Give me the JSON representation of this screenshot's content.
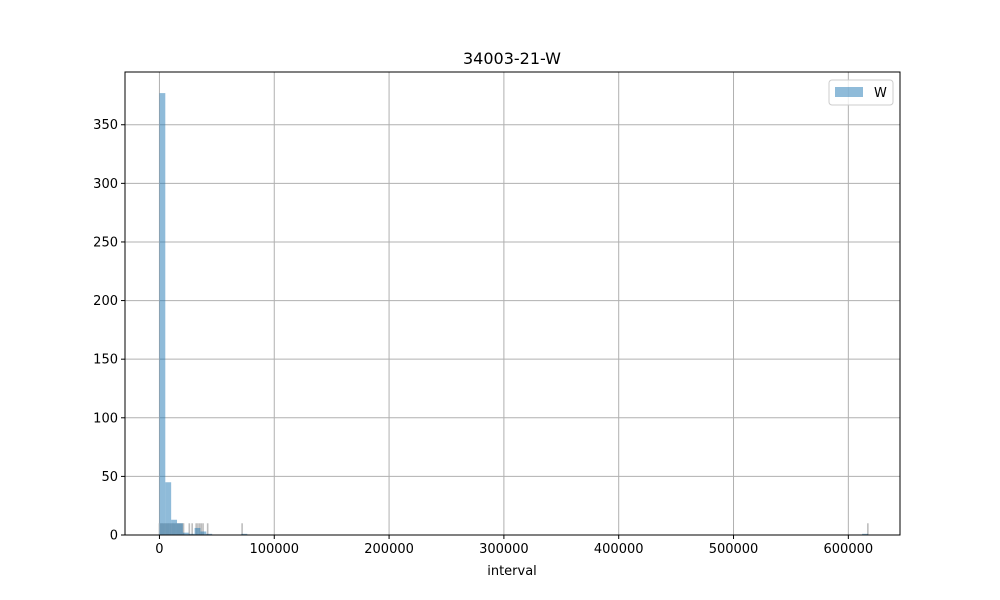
{
  "chart_data": {
    "type": "bar",
    "title": "34003-21-W",
    "xlabel": "interval",
    "ylabel": "",
    "xlim": [
      -30000,
      645000
    ],
    "ylim": [
      0,
      395
    ],
    "xticks": [
      0,
      100000,
      200000,
      300000,
      400000,
      500000,
      600000
    ],
    "xtick_labels": [
      "0",
      "100000",
      "200000",
      "300000",
      "400000",
      "500000",
      "600000"
    ],
    "yticks": [
      0,
      50,
      100,
      150,
      200,
      250,
      300,
      350
    ],
    "ytick_labels": [
      "0",
      "50",
      "100",
      "150",
      "200",
      "250",
      "300",
      "350"
    ],
    "grid": true,
    "legend_position": "upper right",
    "series": [
      {
        "name": "W",
        "color": "#1f77b4",
        "alpha": 0.5,
        "bin_width": 5100,
        "bins": [
          {
            "x0": 0,
            "count": 377
          },
          {
            "x0": 5100,
            "count": 45
          },
          {
            "x0": 10200,
            "count": 13
          },
          {
            "x0": 15300,
            "count": 10
          },
          {
            "x0": 20400,
            "count": 2
          },
          {
            "x0": 25500,
            "count": 1
          },
          {
            "x0": 30600,
            "count": 6
          },
          {
            "x0": 35700,
            "count": 3
          },
          {
            "x0": 40800,
            "count": 1
          },
          {
            "x0": 71400,
            "count": 1
          },
          {
            "x0": 612000,
            "count": 1
          }
        ]
      }
    ],
    "rug": {
      "color": "#bdbdbd",
      "height": 10,
      "x": [
        0,
        1200,
        2400,
        3600,
        4800,
        6000,
        7200,
        8400,
        9600,
        10800,
        12000,
        13200,
        14400,
        15600,
        16800,
        18000,
        19200,
        20400,
        21000,
        26000,
        28500,
        32000,
        33500,
        35000,
        36500,
        38000,
        42000,
        72000,
        617000
      ]
    }
  }
}
